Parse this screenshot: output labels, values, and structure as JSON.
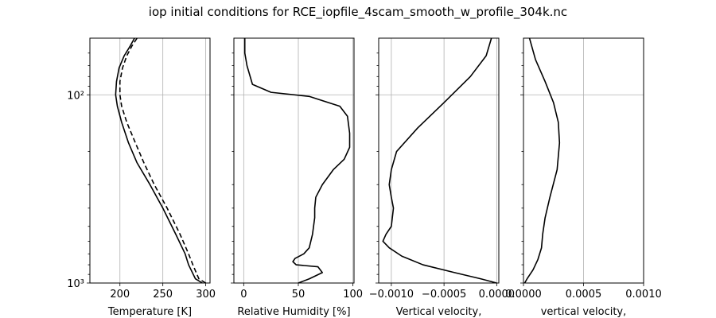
{
  "title": "iop initial conditions for RCE_iopfile_4scam_smooth_w_profile_304k.nc",
  "chart_data": [
    {
      "type": "line",
      "xlabel": "Temperature [K]",
      "ylabel": "",
      "xlim": [
        165,
        305
      ],
      "ylim": [
        1000,
        50
      ],
      "yscale": "log",
      "y_inverted": true,
      "grid": true,
      "xticks": [
        200,
        250,
        300
      ],
      "xtick_labels": [
        "200",
        "250",
        "300"
      ],
      "yticks": [
        100,
        1000
      ],
      "ytick_labels": [
        "10²",
        "10³"
      ],
      "series": [
        {
          "style": "solid",
          "x": [
            296,
            288,
            280,
            276,
            265,
            250,
            235,
            220,
            210,
            202,
            197,
            195,
            196,
            199,
            205,
            212,
            217
          ],
          "y": [
            1000,
            950,
            800,
            700,
            550,
            400,
            300,
            230,
            180,
            140,
            115,
            100,
            85,
            72,
            62,
            55,
            50
          ]
        },
        {
          "style": "dashed",
          "x": [
            300,
            292,
            285,
            280,
            270,
            255,
            240,
            228,
            218,
            208,
            202,
            200,
            200,
            203,
            208,
            214,
            220
          ],
          "y": [
            1000,
            950,
            800,
            700,
            550,
            400,
            300,
            230,
            180,
            140,
            115,
            100,
            85,
            72,
            62,
            55,
            50
          ]
        }
      ]
    },
    {
      "type": "line",
      "xlabel": "Relative Humidity [%]",
      "ylabel": "",
      "xlim": [
        -9,
        101
      ],
      "ylim": [
        1000,
        50
      ],
      "yscale": "log",
      "y_inverted": true,
      "grid": true,
      "xticks": [
        0,
        50,
        100
      ],
      "xtick_labels": [
        "0",
        "50",
        "100"
      ],
      "yticks": [
        100,
        1000
      ],
      "ytick_labels": [
        "",
        ""
      ],
      "series": [
        {
          "style": "solid",
          "x": [
            50,
            60,
            72,
            68,
            48,
            45,
            47,
            55,
            60,
            63,
            65,
            65,
            66,
            72,
            82,
            92,
            97,
            97,
            95,
            88,
            60,
            25,
            8,
            3,
            1,
            1,
            1
          ],
          "y": [
            1000,
            950,
            880,
            820,
            800,
            770,
            740,
            700,
            650,
            550,
            450,
            400,
            350,
            300,
            250,
            220,
            190,
            160,
            130,
            115,
            102,
            97,
            88,
            70,
            60,
            55,
            50
          ]
        }
      ]
    },
    {
      "type": "line",
      "xlabel": "Vertical velocity,",
      "ylabel": "",
      "xlim": [
        -0.00112,
        2e-05
      ],
      "ylim": [
        1000,
        50
      ],
      "yscale": "log",
      "y_inverted": true,
      "grid": true,
      "xticks": [
        -0.001,
        -0.0005,
        0.0
      ],
      "xtick_labels": [
        "−0.0010",
        "−0.0005",
        "0.0000"
      ],
      "yticks": [
        100,
        1000
      ],
      "ytick_labels": [
        "",
        ""
      ],
      "series": [
        {
          "style": "solid",
          "x": [
            0.0,
            -0.00015,
            -0.0004,
            -0.0007,
            -0.0009,
            -0.00102,
            -0.00108,
            -0.00105,
            -0.001,
            -0.00098,
            -0.001,
            -0.00102,
            -0.001,
            -0.00095,
            -0.00075,
            -0.0005,
            -0.00025,
            -0.0001,
            -5e-05
          ],
          "y": [
            1000,
            950,
            880,
            800,
            720,
            650,
            600,
            550,
            500,
            400,
            350,
            300,
            250,
            200,
            150,
            110,
            80,
            62,
            50
          ]
        }
      ]
    },
    {
      "type": "line",
      "xlabel": "vertical velocity,",
      "ylabel": "",
      "xlim": [
        0.0,
        0.001
      ],
      "ylim": [
        1000,
        50
      ],
      "yscale": "log",
      "y_inverted": true,
      "grid": true,
      "xticks": [
        0.0,
        0.0005,
        0.001
      ],
      "xtick_labels": [
        "0.0000",
        "0.0005",
        "0.0010"
      ],
      "yticks": [
        100,
        1000
      ],
      "ytick_labels": [
        "",
        ""
      ],
      "series": [
        {
          "style": "solid",
          "x": [
            1e-05,
            3e-05,
            8e-05,
            0.00012,
            0.00015,
            0.00016,
            0.00018,
            0.00022,
            0.00028,
            0.0003,
            0.00029,
            0.00025,
            0.00018,
            0.0001,
            5e-05
          ],
          "y": [
            1000,
            950,
            850,
            750,
            650,
            550,
            450,
            350,
            250,
            180,
            140,
            110,
            85,
            65,
            50
          ]
        }
      ]
    }
  ]
}
